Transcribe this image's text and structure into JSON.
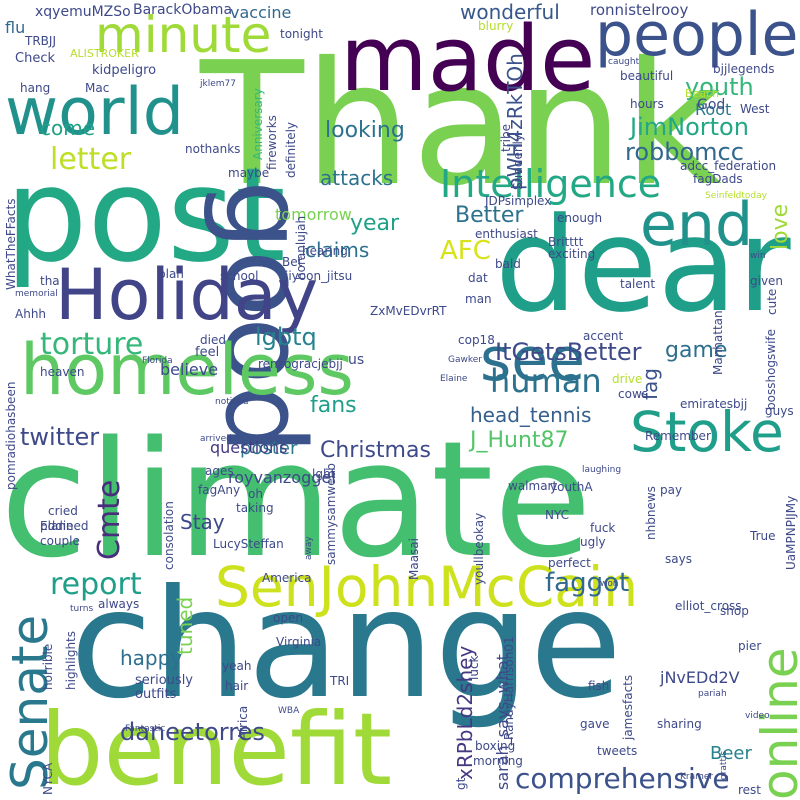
{
  "words": [
    {
      "text": "Thank",
      "color": "#7ad151"
    },
    {
      "text": "climate",
      "color": "#44bf70"
    },
    {
      "text": "change",
      "color": "#2a788e"
    },
    {
      "text": "post",
      "color": "#22a884"
    },
    {
      "text": "dear",
      "color": "#1f9e89"
    },
    {
      "text": "good",
      "color": "#3b528b"
    },
    {
      "text": "benefit",
      "color": "#a0da39"
    },
    {
      "text": "made",
      "color": "#440154"
    },
    {
      "text": "Holiday",
      "color": "#414487"
    },
    {
      "text": "homeless",
      "color": "#5ec962"
    },
    {
      "text": "world",
      "color": "#21918c"
    },
    {
      "text": "people",
      "color": "#3b528b"
    },
    {
      "text": "see",
      "color": "#2c728e"
    },
    {
      "text": "end",
      "color": "#21918c"
    },
    {
      "text": "SenJohnMcCain",
      "color": "#cde11d"
    },
    {
      "text": "Stoke",
      "color": "#1f9e89"
    },
    {
      "text": "minute",
      "color": "#a0da39"
    },
    {
      "text": "Senate",
      "color": "#2a788e"
    },
    {
      "text": "online",
      "color": "#7ad151"
    },
    {
      "text": "Intelligence",
      "color": "#22a884"
    },
    {
      "text": "letter",
      "color": "#bddf26"
    },
    {
      "text": "human",
      "color": "#2c728e"
    },
    {
      "text": "torture",
      "color": "#35b779"
    },
    {
      "text": "report",
      "color": "#1f9e89"
    },
    {
      "text": "Cmte",
      "color": "#472d7b"
    },
    {
      "text": "comprehensive",
      "color": "#3b528b"
    },
    {
      "text": "daneetorres",
      "color": "#3e4989"
    },
    {
      "text": "faggot",
      "color": "#31688e"
    },
    {
      "text": "ItGetsBetter",
      "color": "#3e4a89"
    },
    {
      "text": "JimNorton",
      "color": "#22a884"
    },
    {
      "text": "robbomcc",
      "color": "#31688e"
    },
    {
      "text": "youth",
      "color": "#35b779"
    },
    {
      "text": "lgbtq",
      "color": "#26828e"
    },
    {
      "text": "twitter",
      "color": "#3e4989"
    },
    {
      "text": "Christmas",
      "color": "#3e4989"
    },
    {
      "text": "fans",
      "color": "#1f9e89"
    },
    {
      "text": "J_Hunt87",
      "color": "#52c569"
    },
    {
      "text": "head_tennis",
      "color": "#355f8d"
    },
    {
      "text": "game",
      "color": "#2e6e8e"
    },
    {
      "text": "looking",
      "color": "#2c728e"
    },
    {
      "text": "come",
      "color": "#1fa187"
    },
    {
      "text": "attacks",
      "color": "#2c728e"
    },
    {
      "text": "Better",
      "color": "#2c728e"
    },
    {
      "text": "AFC",
      "color": "#d8e219"
    },
    {
      "text": "claims",
      "color": "#2d708e"
    },
    {
      "text": "year",
      "color": "#1fa187"
    },
    {
      "text": "love",
      "color": "#a0da39"
    },
    {
      "text": "wonderful",
      "color": "#38588c"
    },
    {
      "text": "happy",
      "color": "#2e6e8e"
    },
    {
      "text": "fag",
      "color": "#3b528b"
    },
    {
      "text": "tuned",
      "color": "#7ad151"
    },
    {
      "text": "Stay",
      "color": "#3e4989"
    },
    {
      "text": "Beer",
      "color": "#26828e"
    },
    {
      "text": "poster",
      "color": "#2a788e"
    },
    {
      "text": "pWH4zRkTOh",
      "color": "#3b528b"
    },
    {
      "text": "xRPbLd2shey",
      "color": "#443983"
    },
    {
      "text": "sarah_says_what",
      "color": "#3e4989"
    },
    {
      "text": "royvanzoggel",
      "color": "#3e4989"
    },
    {
      "text": "Root",
      "color": "#2a788e"
    },
    {
      "text": "tomorrow",
      "color": "#7ad151"
    },
    {
      "text": "believe",
      "color": "#3e4989"
    },
    {
      "text": "questions",
      "color": "#443983"
    },
    {
      "text": "flu",
      "color": "#31688e"
    },
    {
      "text": "vaccine",
      "color": "#31688e"
    },
    {
      "text": "ronnistelrooy",
      "color": "#3e4989"
    },
    {
      "text": "xqyemuMZSo",
      "color": "#3e4989"
    },
    {
      "text": "BarackObama",
      "color": "#3e4989"
    },
    {
      "text": "TRBJJ",
      "color": "#3e4989"
    },
    {
      "text": "ALISTROKER",
      "color": "#b5de2b"
    },
    {
      "text": "Check",
      "color": "#3e4989"
    },
    {
      "text": "kidpeligro",
      "color": "#3e4989"
    },
    {
      "text": "hang",
      "color": "#3e4989"
    },
    {
      "text": "Mac",
      "color": "#3e4989"
    },
    {
      "text": "jklem77",
      "color": "#3e4989"
    },
    {
      "text": "Anniversary",
      "color": "#35b779"
    },
    {
      "text": "fireworks",
      "color": "#3e4989"
    },
    {
      "text": "nothanks",
      "color": "#3e4989"
    },
    {
      "text": "maybe",
      "color": "#3e4989"
    },
    {
      "text": "tonight",
      "color": "#3e4989"
    },
    {
      "text": "blurry",
      "color": "#b5de2b"
    },
    {
      "text": "caught",
      "color": "#3e4989"
    },
    {
      "text": "bjjlegends",
      "color": "#3e4989"
    },
    {
      "text": "beautiful",
      "color": "#3e4989"
    },
    {
      "text": "hours",
      "color": "#3e4989"
    },
    {
      "text": "God",
      "color": "#3e4989"
    },
    {
      "text": "West",
      "color": "#3e4989"
    },
    {
      "text": "Beach",
      "color": "#b5de2b"
    },
    {
      "text": "adcc_federation",
      "color": "#3e4989"
    },
    {
      "text": "fagDads",
      "color": "#3e4989"
    },
    {
      "text": "Seinfeldtoday",
      "color": "#b5de2b"
    },
    {
      "text": "tribe",
      "color": "#3e4989"
    },
    {
      "text": "Suddenly",
      "color": "#3e4989"
    },
    {
      "text": "JDPsimplex",
      "color": "#3e4989"
    },
    {
      "text": "enthusiast",
      "color": "#3e4989"
    },
    {
      "text": "enough",
      "color": "#3e4989"
    },
    {
      "text": "bald",
      "color": "#3e4989"
    },
    {
      "text": "Britttt",
      "color": "#3e4989"
    },
    {
      "text": "exciting",
      "color": "#3e4989"
    },
    {
      "text": "win",
      "color": "#3e4989"
    },
    {
      "text": "given",
      "color": "#3e4989"
    },
    {
      "text": "talent",
      "color": "#3e4989"
    },
    {
      "text": "cute",
      "color": "#3e4989"
    },
    {
      "text": "bosshogswife",
      "color": "#3e4989"
    },
    {
      "text": "Manhattan",
      "color": "#3e4989"
    },
    {
      "text": "accent",
      "color": "#3e4989"
    },
    {
      "text": "guys",
      "color": "#3e4989"
    },
    {
      "text": "WhatTheFFacts",
      "color": "#3e4989"
    },
    {
      "text": "definitely",
      "color": "#3e4989"
    },
    {
      "text": "horanlujah",
      "color": "#3e4989"
    },
    {
      "text": "hearing",
      "color": "#3e4989"
    },
    {
      "text": "Bet",
      "color": "#3e4989"
    },
    {
      "text": "tha",
      "color": "#3e4989"
    },
    {
      "text": "memorial",
      "color": "#3e4989"
    },
    {
      "text": "plan",
      "color": "#3e4989"
    },
    {
      "text": "school",
      "color": "#3e4989"
    },
    {
      "text": "jiyoon_jitsu",
      "color": "#3e4989"
    },
    {
      "text": "dat",
      "color": "#3e4989"
    },
    {
      "text": "man",
      "color": "#3e4989"
    },
    {
      "text": "ZxMvEDvrRT",
      "color": "#3e4989"
    },
    {
      "text": "Ahhh",
      "color": "#3e4989"
    },
    {
      "text": "cop18",
      "color": "#3e4989"
    },
    {
      "text": "us",
      "color": "#3e4989"
    },
    {
      "text": "feel",
      "color": "#3e4989"
    },
    {
      "text": "died",
      "color": "#3e4989"
    },
    {
      "text": "Florida",
      "color": "#3e4989"
    },
    {
      "text": "renzogracjebjj",
      "color": "#3e4989"
    },
    {
      "text": "Gawker",
      "color": "#3e4989"
    },
    {
      "text": "Elaine",
      "color": "#3e4989"
    },
    {
      "text": "heaven",
      "color": "#3e4989"
    },
    {
      "text": "drive",
      "color": "#b5de2b"
    },
    {
      "text": "cows",
      "color": "#3e4989"
    },
    {
      "text": "emiratesbjj",
      "color": "#3e4989"
    },
    {
      "text": "pomradiohasbeen",
      "color": "#3e4989"
    },
    {
      "text": "noticed",
      "color": "#3e4989"
    },
    {
      "text": "arrived",
      "color": "#3e4989"
    },
    {
      "text": "ages",
      "color": "#3e4989"
    },
    {
      "text": "oh",
      "color": "#3e4989"
    },
    {
      "text": "lgbt",
      "color": "#3e4989"
    },
    {
      "text": "fagAny",
      "color": "#3e4989"
    },
    {
      "text": "Remember",
      "color": "#3e4989"
    },
    {
      "text": "cried",
      "color": "#3e4989"
    },
    {
      "text": "planned",
      "color": "#3e4989"
    },
    {
      "text": "taking",
      "color": "#3e4989"
    },
    {
      "text": "Eddie",
      "color": "#3e4989"
    },
    {
      "text": "couple",
      "color": "#3e4989"
    },
    {
      "text": "consolation",
      "color": "#3e4989"
    },
    {
      "text": "LucySteffan",
      "color": "#3e4989"
    },
    {
      "text": "sammysamwebb",
      "color": "#3e4989"
    },
    {
      "text": "away",
      "color": "#3e4989"
    },
    {
      "text": "Maasai",
      "color": "#3e4989"
    },
    {
      "text": "youllbeokay",
      "color": "#3e4989"
    },
    {
      "text": "walmart",
      "color": "#3e4989"
    },
    {
      "text": "laughing",
      "color": "#3e4989"
    },
    {
      "text": "youthA",
      "color": "#3e4989"
    },
    {
      "text": "NYC",
      "color": "#3e4989"
    },
    {
      "text": "nhbnews",
      "color": "#3e4989"
    },
    {
      "text": "pay",
      "color": "#3e4989"
    },
    {
      "text": "True",
      "color": "#3e4989"
    },
    {
      "text": "fuck",
      "color": "#3e4989"
    },
    {
      "text": "ugly",
      "color": "#3e4989"
    },
    {
      "text": "perfect",
      "color": "#3e4989"
    },
    {
      "text": "says",
      "color": "#3e4989"
    },
    {
      "text": "UaMPNPlJMy",
      "color": "#3e4989"
    },
    {
      "text": "America",
      "color": "#3e4989"
    },
    {
      "text": "always",
      "color": "#3e4989"
    },
    {
      "text": "turns",
      "color": "#3e4989"
    },
    {
      "text": "won",
      "color": "#3e4989"
    },
    {
      "text": "elliot_cross",
      "color": "#3e4989"
    },
    {
      "text": "shop",
      "color": "#3e4989"
    },
    {
      "text": "highlights",
      "color": "#3e4989"
    },
    {
      "text": "open",
      "color": "#3e4989"
    },
    {
      "text": "Virginia",
      "color": "#3e4989"
    },
    {
      "text": "pier",
      "color": "#3e4989"
    },
    {
      "text": "RandyHarrison01",
      "color": "#3e4989"
    },
    {
      "text": "horrible",
      "color": "#3e4989"
    },
    {
      "text": "luck",
      "color": "#3e4989"
    },
    {
      "text": "seriously",
      "color": "#3e4989"
    },
    {
      "text": "outfits",
      "color": "#3e4989"
    },
    {
      "text": "yeah",
      "color": "#3e4989"
    },
    {
      "text": "hair",
      "color": "#3e4989"
    },
    {
      "text": "TRI",
      "color": "#3e4989"
    },
    {
      "text": "jNvEDd2V",
      "color": "#3e4989"
    },
    {
      "text": "jamesfacts",
      "color": "#3e4989"
    },
    {
      "text": "fish",
      "color": "#3e4989"
    },
    {
      "text": "pariah",
      "color": "#3e4989"
    },
    {
      "text": "Africa",
      "color": "#3e4989"
    },
    {
      "text": "WBA",
      "color": "#3e4989"
    },
    {
      "text": "video",
      "color": "#3e4989"
    },
    {
      "text": "sharing",
      "color": "#3e4989"
    },
    {
      "text": "gave",
      "color": "#3e4989"
    },
    {
      "text": "Fantastic",
      "color": "#3e4989"
    },
    {
      "text": "boxing",
      "color": "#3e4989"
    },
    {
      "text": "morning",
      "color": "#3e4989"
    },
    {
      "text": "tweets",
      "color": "#3e4989"
    },
    {
      "text": "Kramer",
      "color": "#3e4989"
    },
    {
      "text": "grattis",
      "color": "#3e4989"
    },
    {
      "text": "NYCA",
      "color": "#3e4989"
    },
    {
      "text": "gt",
      "color": "#3e4989"
    },
    {
      "text": "rest",
      "color": "#3e4989"
    }
  ]
}
